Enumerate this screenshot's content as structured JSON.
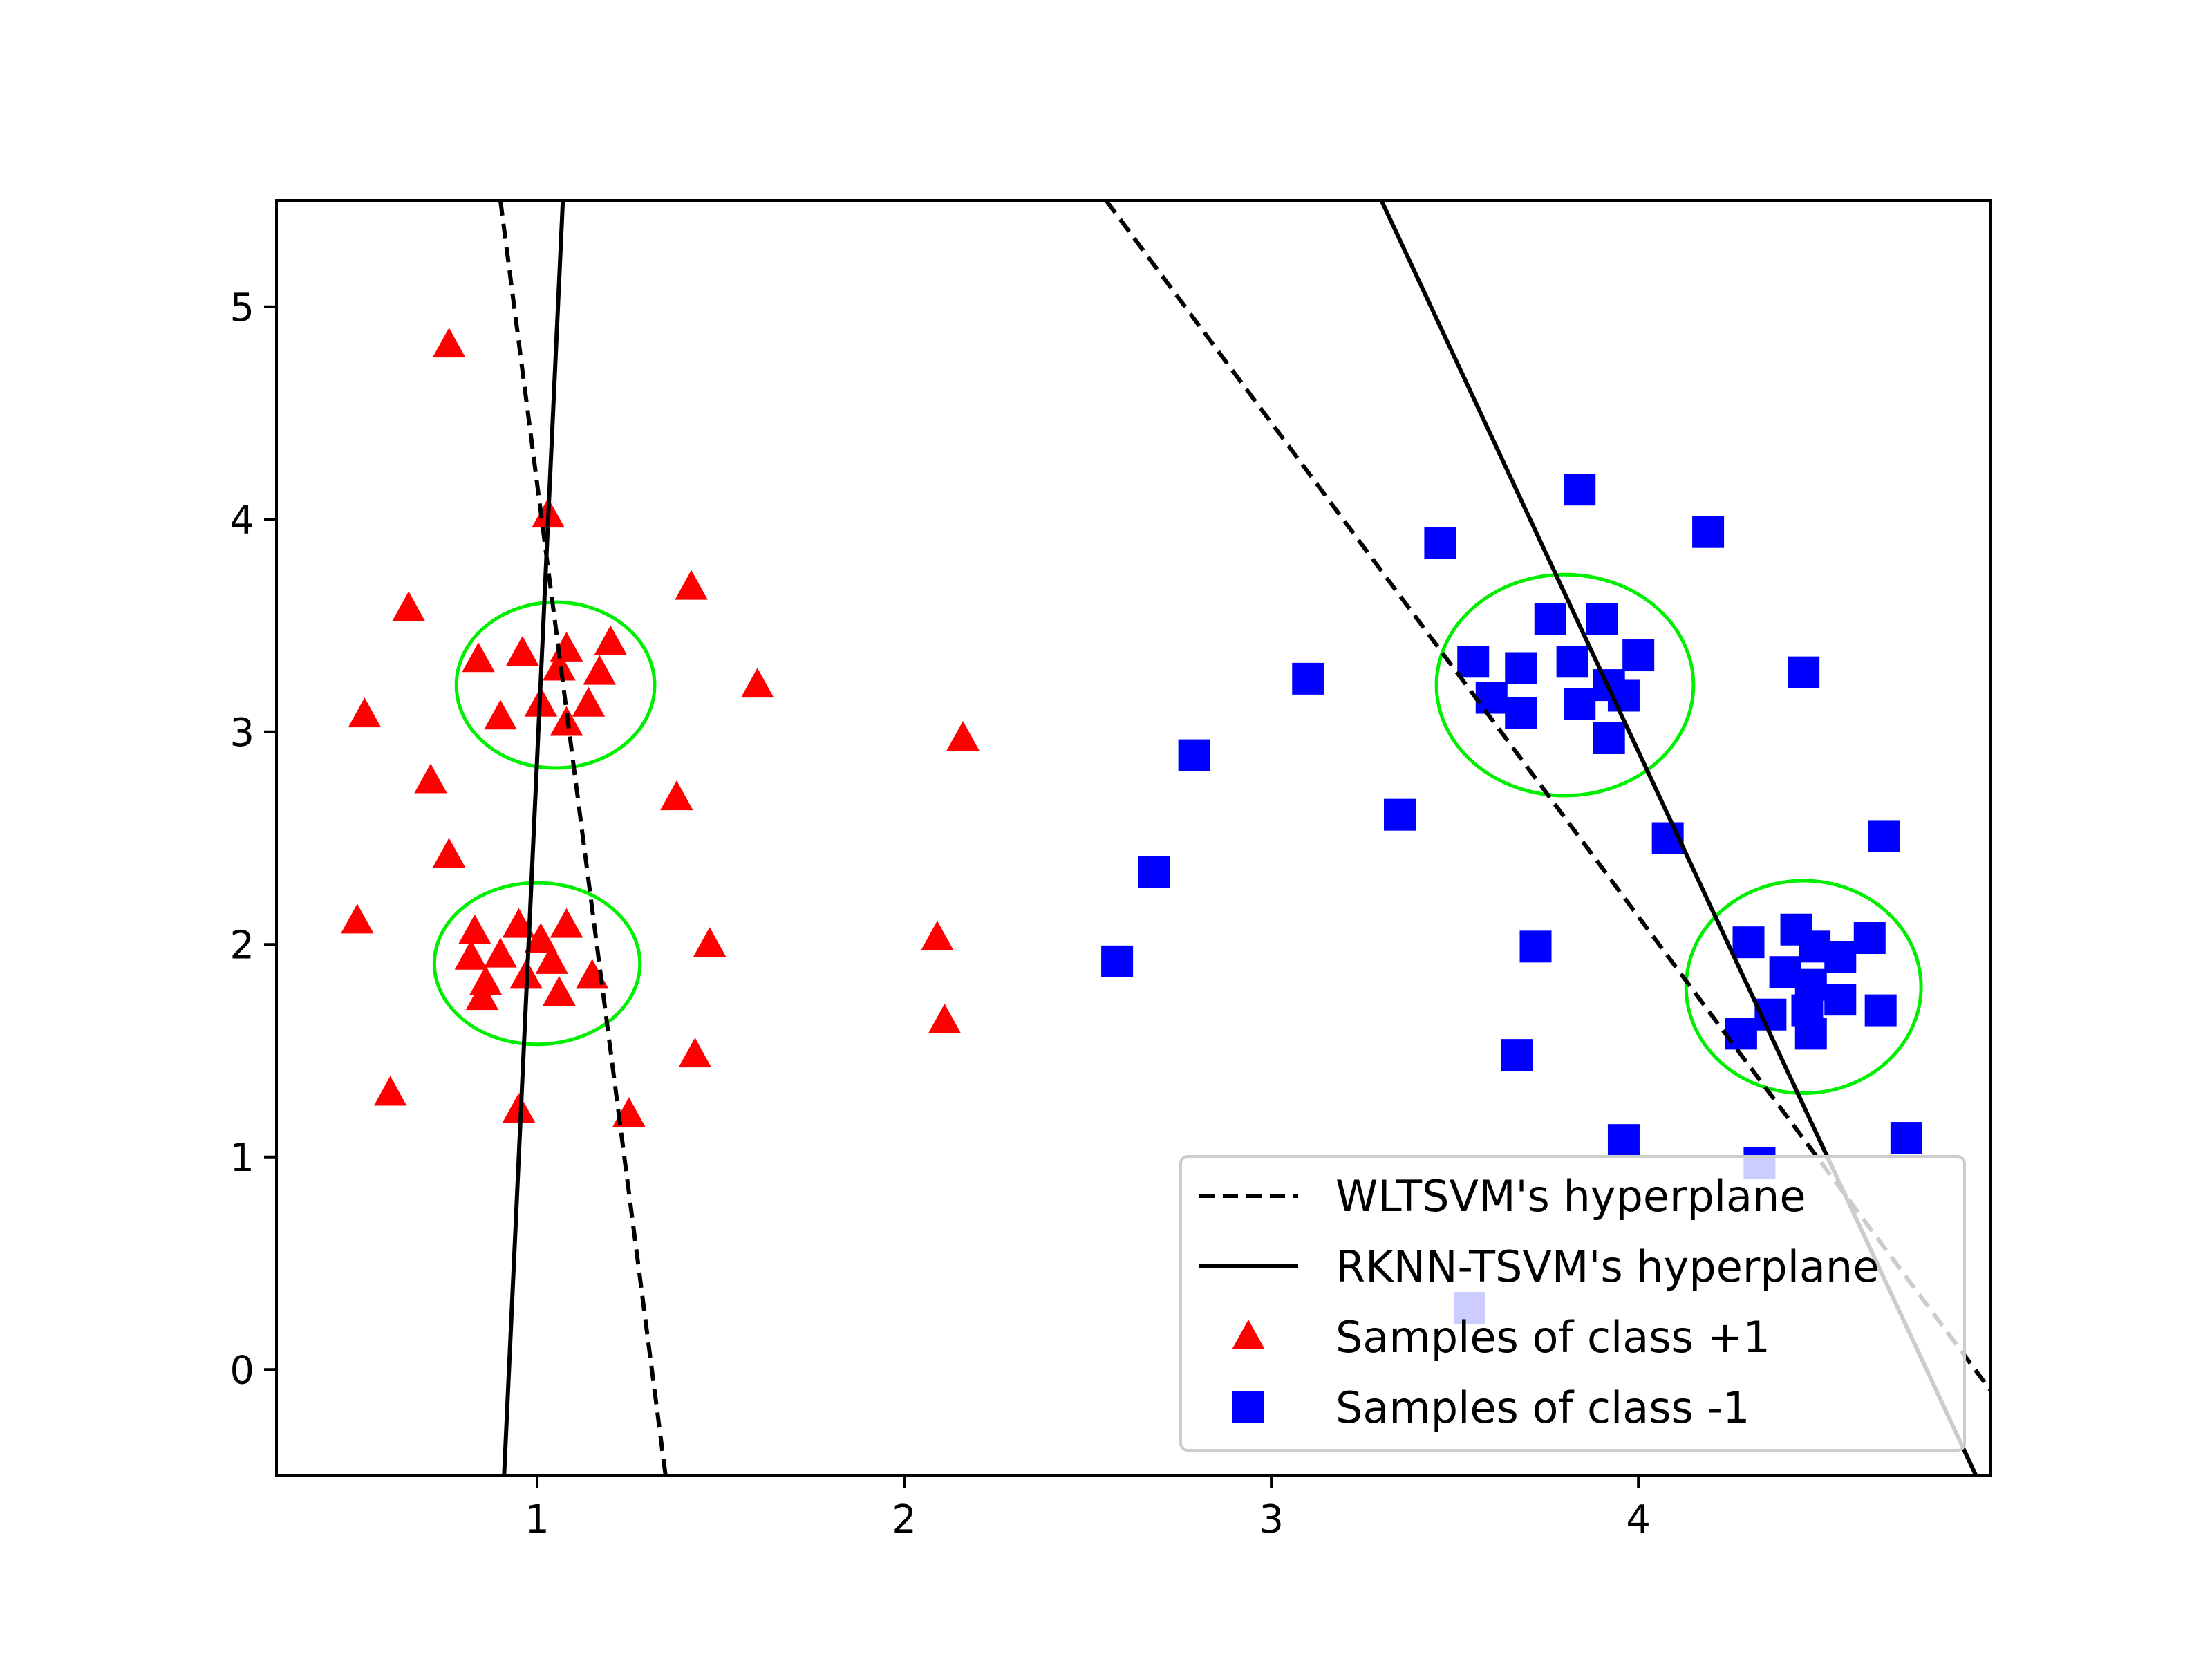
{
  "chart_data": {
    "type": "scatter",
    "title": "",
    "xlabel": "",
    "ylabel": "",
    "xlim": [
      0.29,
      4.96
    ],
    "ylim": [
      -0.5,
      5.5
    ],
    "xticks": [
      1,
      2,
      3,
      4
    ],
    "yticks": [
      0,
      1,
      2,
      3,
      4,
      5
    ],
    "xtick_labels": [
      "1",
      "2",
      "3",
      "4"
    ],
    "ytick_labels": [
      "0",
      "1",
      "2",
      "3",
      "4",
      "5"
    ],
    "grid": false,
    "legend_position": "bottom-right",
    "series": [
      {
        "name": "Samples of class +1",
        "kind": "points",
        "marker": "triangle",
        "color": "#ff0000",
        "points": [
          [
            0.76,
            4.82
          ],
          [
            1.03,
            4.02
          ],
          [
            0.65,
            3.58
          ],
          [
            1.42,
            3.68
          ],
          [
            0.53,
            3.08
          ],
          [
            0.84,
            3.34
          ],
          [
            0.96,
            3.37
          ],
          [
            1.08,
            3.39
          ],
          [
            1.2,
            3.42
          ],
          [
            1.17,
            3.28
          ],
          [
            1.06,
            3.3
          ],
          [
            0.9,
            3.07
          ],
          [
            1.01,
            3.13
          ],
          [
            1.08,
            3.04
          ],
          [
            1.14,
            3.13
          ],
          [
            1.6,
            3.22
          ],
          [
            0.71,
            2.77
          ],
          [
            1.38,
            2.69
          ],
          [
            0.76,
            2.42
          ],
          [
            2.16,
            2.97
          ],
          [
            0.51,
            2.11
          ],
          [
            0.83,
            2.06
          ],
          [
            0.95,
            2.09
          ],
          [
            1.08,
            2.09
          ],
          [
            0.9,
            1.95
          ],
          [
            0.82,
            1.94
          ],
          [
            1.01,
            2.02
          ],
          [
            1.04,
            1.92
          ],
          [
            0.97,
            1.85
          ],
          [
            0.86,
            1.82
          ],
          [
            1.15,
            1.85
          ],
          [
            0.85,
            1.75
          ],
          [
            1.06,
            1.77
          ],
          [
            1.47,
            2.0
          ],
          [
            2.09,
            2.03
          ],
          [
            2.11,
            1.64
          ],
          [
            1.43,
            1.48
          ],
          [
            0.6,
            1.3
          ],
          [
            0.95,
            1.22
          ],
          [
            1.25,
            1.2
          ]
        ]
      },
      {
        "name": "Samples of class -1",
        "kind": "points",
        "marker": "square",
        "color": "#0000ff",
        "points": [
          [
            3.84,
            4.14
          ],
          [
            3.46,
            3.89
          ],
          [
            4.19,
            3.94
          ],
          [
            3.76,
            3.53
          ],
          [
            3.9,
            3.53
          ],
          [
            3.55,
            3.33
          ],
          [
            3.68,
            3.3
          ],
          [
            3.82,
            3.33
          ],
          [
            3.92,
            3.22
          ],
          [
            3.96,
            3.17
          ],
          [
            4.0,
            3.36
          ],
          [
            3.6,
            3.16
          ],
          [
            3.68,
            3.09
          ],
          [
            3.84,
            3.13
          ],
          [
            3.92,
            2.97
          ],
          [
            4.45,
            3.28
          ],
          [
            3.1,
            3.25
          ],
          [
            2.79,
            2.89
          ],
          [
            3.35,
            2.61
          ],
          [
            4.08,
            2.5
          ],
          [
            4.67,
            2.51
          ],
          [
            2.68,
            2.34
          ],
          [
            3.72,
            1.99
          ],
          [
            2.58,
            1.92
          ],
          [
            4.3,
            2.01
          ],
          [
            4.43,
            2.07
          ],
          [
            4.48,
            1.99
          ],
          [
            4.55,
            1.94
          ],
          [
            4.63,
            2.03
          ],
          [
            4.4,
            1.87
          ],
          [
            4.47,
            1.81
          ],
          [
            4.46,
            1.69
          ],
          [
            4.55,
            1.74
          ],
          [
            4.66,
            1.69
          ],
          [
            4.36,
            1.67
          ],
          [
            4.28,
            1.58
          ],
          [
            4.47,
            1.58
          ],
          [
            3.67,
            1.48
          ],
          [
            3.96,
            1.08
          ],
          [
            4.73,
            1.09
          ],
          [
            4.33,
            0.97
          ],
          [
            3.54,
            0.29
          ]
        ]
      },
      {
        "name": "WLTSVM's hyperplane",
        "kind": "line",
        "style": "dashed",
        "color": "#000000",
        "points": [
          [
            [
              0.9,
              5.5
            ],
            [
              1.35,
              -0.5
            ]
          ],
          [
            [
              2.55,
              5.5
            ],
            [
              4.96,
              -0.1
            ]
          ]
        ]
      },
      {
        "name": "RKNN-TSVM's hyperplane",
        "kind": "line",
        "style": "solid",
        "color": "#000000",
        "points": [
          [
            [
              1.07,
              5.5
            ],
            [
              0.91,
              -0.5
            ]
          ],
          [
            [
              3.3,
              5.5
            ],
            [
              4.92,
              -0.5
            ]
          ]
        ]
      },
      {
        "name": "highlighted clusters",
        "kind": "ellipse",
        "color": "#00ee00",
        "ellipses": [
          {
            "cx": 1.05,
            "cy": 3.22,
            "rx": 0.27,
            "ry": 0.39
          },
          {
            "cx": 1.0,
            "cy": 1.91,
            "rx": 0.28,
            "ry": 0.38
          },
          {
            "cx": 3.8,
            "cy": 3.22,
            "rx": 0.35,
            "ry": 0.52
          },
          {
            "cx": 4.45,
            "cy": 1.8,
            "rx": 0.32,
            "ry": 0.5
          }
        ]
      }
    ],
    "legend": [
      {
        "label": "WLTSVM's hyperplane",
        "marker": "dashed-line"
      },
      {
        "label": "RKNN-TSVM's hyperplane",
        "marker": "solid-line"
      },
      {
        "label": "Samples of class +1",
        "marker": "triangle",
        "color": "#ff0000"
      },
      {
        "label": "Samples of class -1",
        "marker": "square",
        "color": "#0000ff"
      }
    ]
  }
}
